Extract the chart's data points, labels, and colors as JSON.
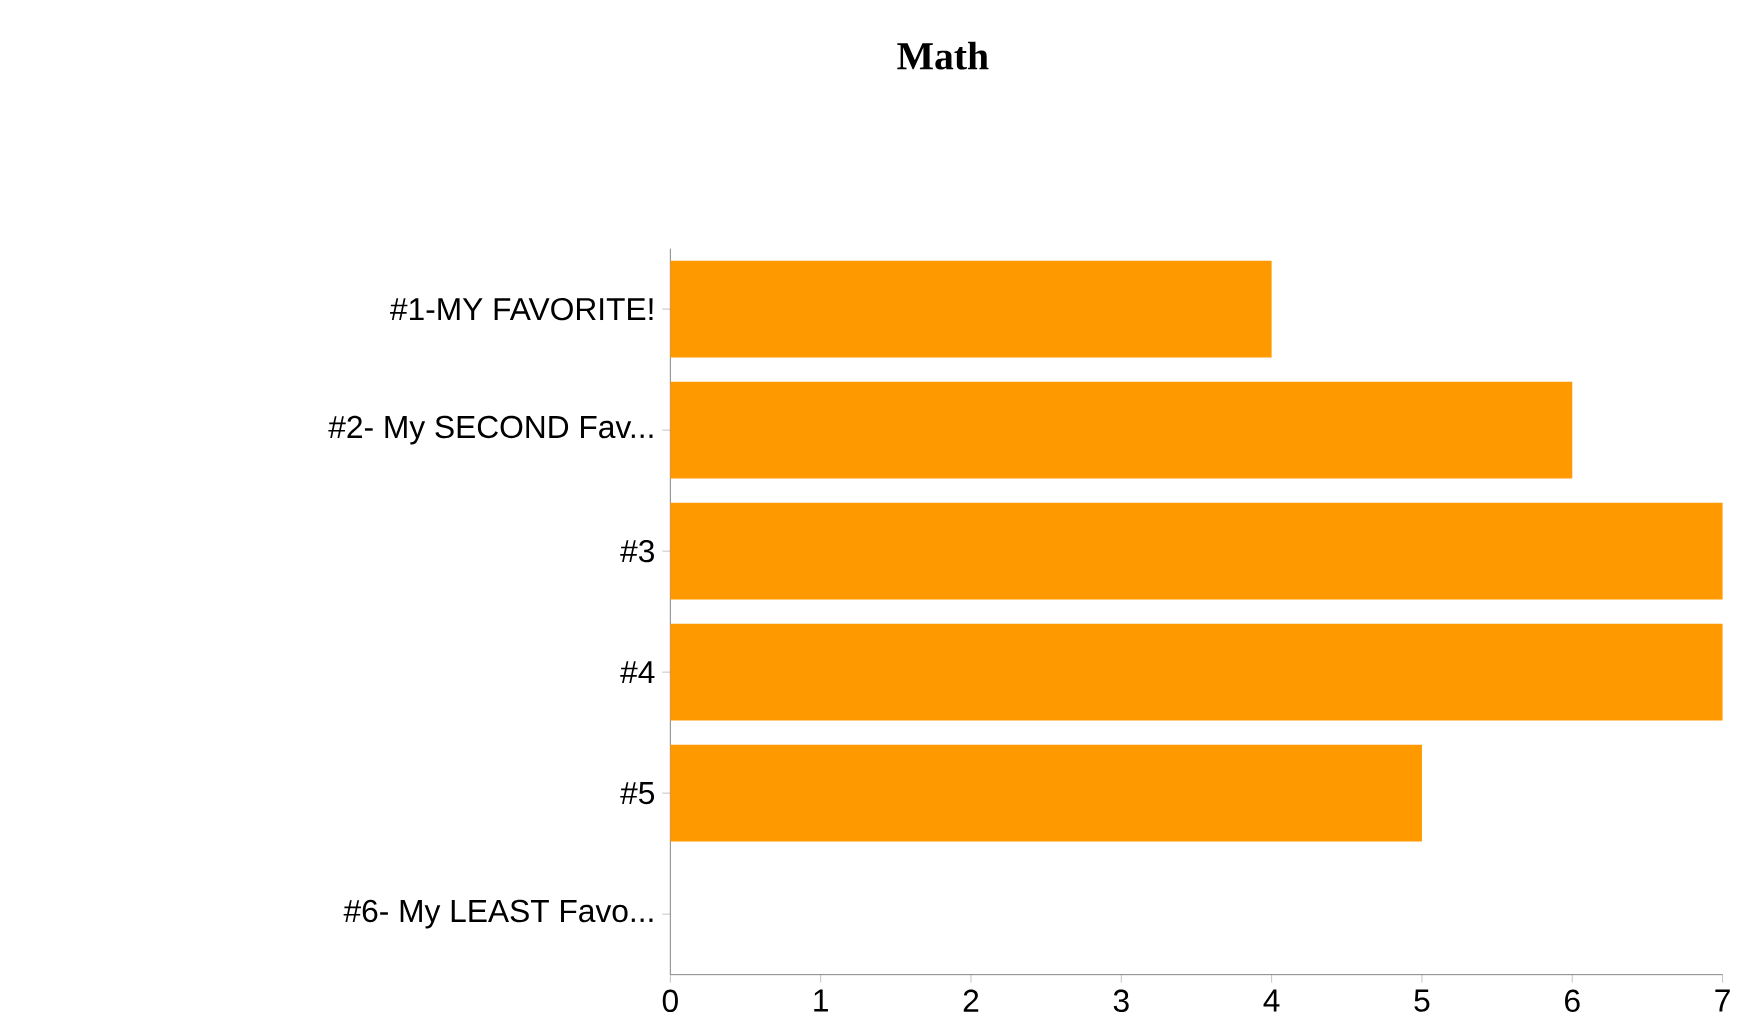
{
  "chart_data": {
    "type": "bar",
    "orientation": "horizontal",
    "title": "Math",
    "categories": [
      "#1-MY FAVORITE!",
      "#2- My SECOND Fav...",
      "#3",
      "#4",
      "#5",
      "#6- My LEAST Favo..."
    ],
    "values": [
      4,
      6,
      7,
      7,
      5,
      0
    ],
    "color": "#ff9900",
    "xlim": [
      0,
      7
    ],
    "xticks": [
      0,
      1,
      2,
      3,
      4,
      5,
      6,
      7
    ]
  }
}
